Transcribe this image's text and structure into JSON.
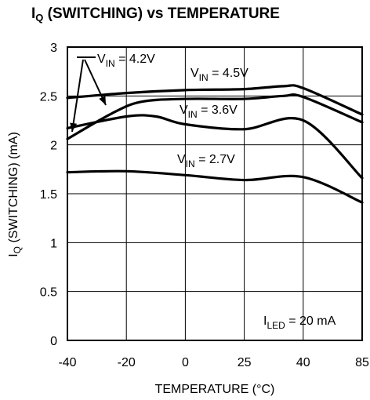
{
  "title": {
    "main": "I",
    "sub": "Q",
    "rest": " (SWITCHING) vs TEMPERATURE"
  },
  "chart_data": {
    "type": "line",
    "xlabel": "TEMPERATURE (°C)",
    "ylabel": {
      "main": "I",
      "sub": "Q",
      "rest": " (SWITCHING) (mA)"
    },
    "x_tick_labels": [
      "-40",
      "-20",
      "0",
      "25",
      "40",
      "85"
    ],
    "y_tick_labels": [
      "0",
      "0.5",
      "1",
      "1.5",
      "2",
      "2.5",
      "3"
    ],
    "y_ticks": [
      0,
      0.5,
      1,
      1.5,
      2,
      2.5,
      3
    ],
    "ylim": [
      0,
      3
    ],
    "grid": true,
    "series": [
      {
        "name": "V_IN = 4.5V",
        "points": [
          [
            -40,
            2.48
          ],
          [
            -20,
            2.53
          ],
          [
            0,
            2.56
          ],
          [
            25,
            2.57
          ],
          [
            35,
            2.6
          ],
          [
            40,
            2.58
          ],
          [
            85,
            2.31
          ]
        ]
      },
      {
        "name": "V_IN = 4.2V",
        "points": [
          [
            -40,
            2.06
          ],
          [
            -25,
            2.32
          ],
          [
            -15,
            2.44
          ],
          [
            0,
            2.47
          ],
          [
            25,
            2.47
          ],
          [
            35,
            2.5
          ],
          [
            40,
            2.49
          ],
          [
            85,
            2.23
          ]
        ]
      },
      {
        "name": "V_IN = 3.6V",
        "points": [
          [
            -40,
            2.17
          ],
          [
            -20,
            2.29
          ],
          [
            -10,
            2.29
          ],
          [
            0,
            2.21
          ],
          [
            25,
            2.16
          ],
          [
            40,
            2.25
          ],
          [
            85,
            1.66
          ]
        ]
      },
      {
        "name": "V_IN = 2.7V",
        "points": [
          [
            -40,
            1.72
          ],
          [
            -20,
            1.73
          ],
          [
            0,
            1.69
          ],
          [
            25,
            1.64
          ],
          [
            40,
            1.67
          ],
          [
            85,
            1.41
          ]
        ]
      }
    ],
    "annotations": [
      {
        "main": "V",
        "sub": "IN",
        "rest": " = 4.2V"
      },
      {
        "main": "V",
        "sub": "IN",
        "rest": " = 4.5V"
      },
      {
        "main": "V",
        "sub": "IN",
        "rest": " = 3.6V"
      },
      {
        "main": "V",
        "sub": "IN",
        "rest": " = 2.7V"
      },
      {
        "main": "I",
        "sub": "LED",
        "rest": " = 20 mA"
      }
    ]
  }
}
